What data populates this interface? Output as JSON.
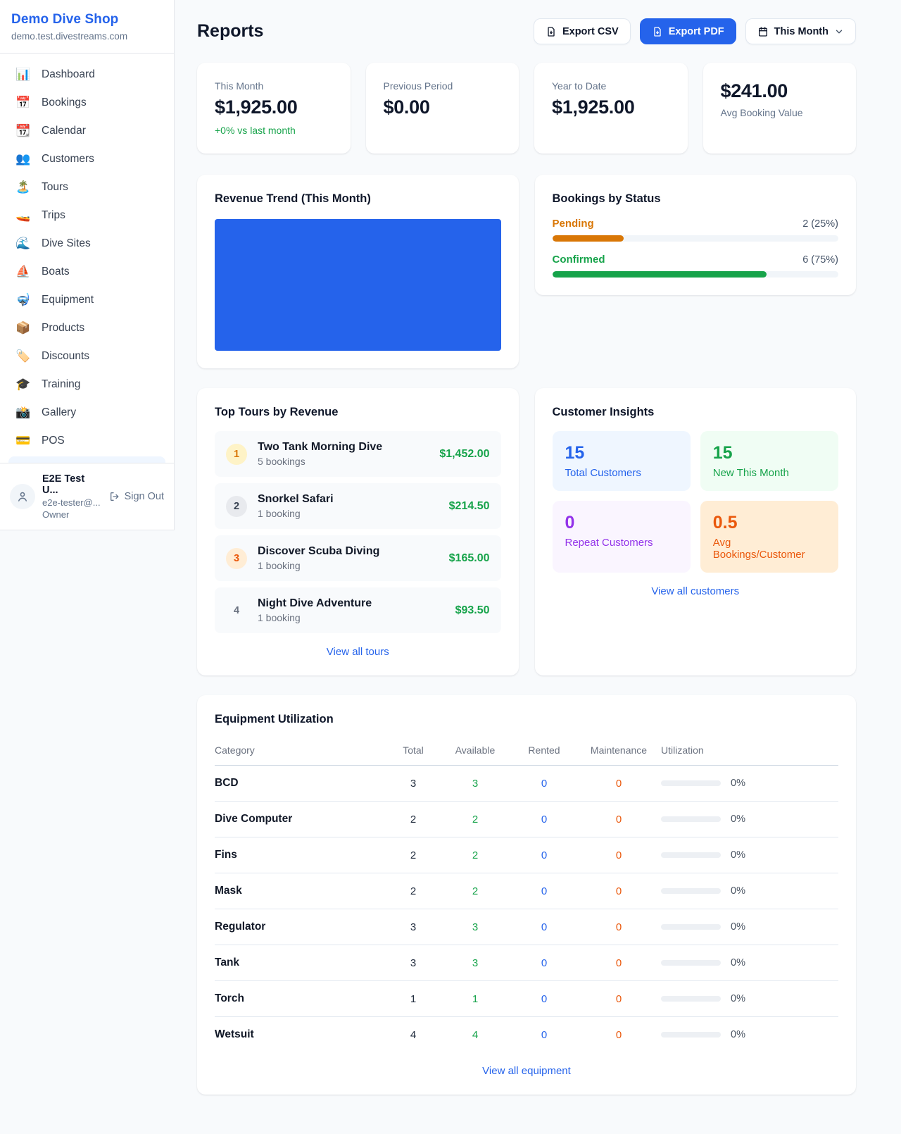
{
  "sidebar": {
    "brand": {
      "name": "Demo Dive Shop",
      "domain": "demo.test.divestreams.com"
    },
    "nav": [
      {
        "icon": "📊",
        "icon_name": "dashboard-icon",
        "label": "Dashboard"
      },
      {
        "icon": "📅",
        "icon_name": "bookings-calendar-icon",
        "label": "Bookings"
      },
      {
        "icon": "📆",
        "icon_name": "calendar-icon",
        "label": "Calendar"
      },
      {
        "icon": "👥",
        "icon_name": "customers-icon",
        "label": "Customers"
      },
      {
        "icon": "🏝️",
        "icon_name": "island-icon",
        "label": "Tours"
      },
      {
        "icon": "🚤",
        "icon_name": "speedboat-icon",
        "label": "Trips"
      },
      {
        "icon": "🌊",
        "icon_name": "wave-icon",
        "label": "Dive Sites"
      },
      {
        "icon": "⛵",
        "icon_name": "sailboat-icon",
        "label": "Boats"
      },
      {
        "icon": "🤿",
        "icon_name": "diving-mask-icon",
        "label": "Equipment"
      },
      {
        "icon": "📦",
        "icon_name": "package-icon",
        "label": "Products"
      },
      {
        "icon": "🏷️",
        "icon_name": "tag-icon",
        "label": "Discounts"
      },
      {
        "icon": "🎓",
        "icon_name": "graduation-cap-icon",
        "label": "Training"
      },
      {
        "icon": "📸",
        "icon_name": "camera-icon",
        "label": "Gallery"
      },
      {
        "icon": "💳",
        "icon_name": "credit-card-icon",
        "label": "POS"
      }
    ],
    "user": {
      "name": "E2E Test U...",
      "email": "e2e-tester@...",
      "role": "Owner",
      "sign_out": "Sign Out"
    }
  },
  "header": {
    "title": "Reports",
    "export_csv": "Export CSV",
    "export_pdf": "Export PDF",
    "period": "This Month"
  },
  "stats": [
    {
      "label": "This Month",
      "value": "$1,925.00",
      "sub": "+0% vs last month"
    },
    {
      "label": "Previous Period",
      "value": "$0.00"
    },
    {
      "label": "Year to Date",
      "value": "$1,925.00"
    },
    {
      "label": "Avg Booking Value",
      "value": "$241.00"
    }
  ],
  "revenue_trend": {
    "title": "Revenue Trend (This Month)",
    "chart_color": "#2563eb"
  },
  "bookings_by_status": {
    "title": "Bookings by Status",
    "items": [
      {
        "label": "Pending",
        "count_text": "2 (25%)",
        "percent": 25,
        "color": "#d97706"
      },
      {
        "label": "Confirmed",
        "count_text": "6 (75%)",
        "percent": 75,
        "color": "#16a34a"
      }
    ]
  },
  "top_tours": {
    "title": "Top Tours by Revenue",
    "items": [
      {
        "rank": "1",
        "name": "Two Tank Morning Dive",
        "bookings": "5 bookings",
        "amount": "$1,452.00",
        "badge_bg": "#fef3c7",
        "badge_color": "#d97706"
      },
      {
        "rank": "2",
        "name": "Snorkel Safari",
        "bookings": "1 booking",
        "amount": "$214.50",
        "badge_bg": "#e8eaee",
        "badge_color": "#374151"
      },
      {
        "rank": "3",
        "name": "Discover Scuba Diving",
        "bookings": "1 booking",
        "amount": "$165.00",
        "badge_bg": "#ffedd5",
        "badge_color": "#ea580c"
      },
      {
        "rank": "4",
        "name": "Night Dive Adventure",
        "bookings": "1 booking",
        "amount": "$93.50",
        "badge_bg": "transparent",
        "badge_color": "#6b7280"
      }
    ],
    "view_all": "View all tours"
  },
  "customer_insights": {
    "title": "Customer Insights",
    "tiles": [
      {
        "value": "15",
        "label": "Total Customers",
        "color": "#2563eb",
        "bg": "#eff6ff"
      },
      {
        "value": "15",
        "label": "New This Month",
        "color": "#16a34a",
        "bg": "#f0fdf4"
      },
      {
        "value": "0",
        "label": "Repeat Customers",
        "color": "#9333ea",
        "bg": "#faf5ff"
      },
      {
        "value": "0.5",
        "label": "Avg Bookings/Customer",
        "color": "#ea580c",
        "bg": "#ffedd5"
      }
    ],
    "view_all": "View all customers"
  },
  "equipment": {
    "title": "Equipment Utilization",
    "columns": [
      "Category",
      "Total",
      "Available",
      "Rented",
      "Maintenance",
      "Utilization"
    ],
    "rows": [
      {
        "category": "BCD",
        "total": "3",
        "available": "3",
        "rented": "0",
        "maintenance": "0",
        "utilization": "0%"
      },
      {
        "category": "Dive Computer",
        "total": "2",
        "available": "2",
        "rented": "0",
        "maintenance": "0",
        "utilization": "0%"
      },
      {
        "category": "Fins",
        "total": "2",
        "available": "2",
        "rented": "0",
        "maintenance": "0",
        "utilization": "0%"
      },
      {
        "category": "Mask",
        "total": "2",
        "available": "2",
        "rented": "0",
        "maintenance": "0",
        "utilization": "0%"
      },
      {
        "category": "Regulator",
        "total": "3",
        "available": "3",
        "rented": "0",
        "maintenance": "0",
        "utilization": "0%"
      },
      {
        "category": "Tank",
        "total": "3",
        "available": "3",
        "rented": "0",
        "maintenance": "0",
        "utilization": "0%"
      },
      {
        "category": "Torch",
        "total": "1",
        "available": "1",
        "rented": "0",
        "maintenance": "0",
        "utilization": "0%"
      },
      {
        "category": "Wetsuit",
        "total": "4",
        "available": "4",
        "rented": "0",
        "maintenance": "0",
        "utilization": "0%"
      }
    ],
    "view_all": "View all equipment"
  }
}
